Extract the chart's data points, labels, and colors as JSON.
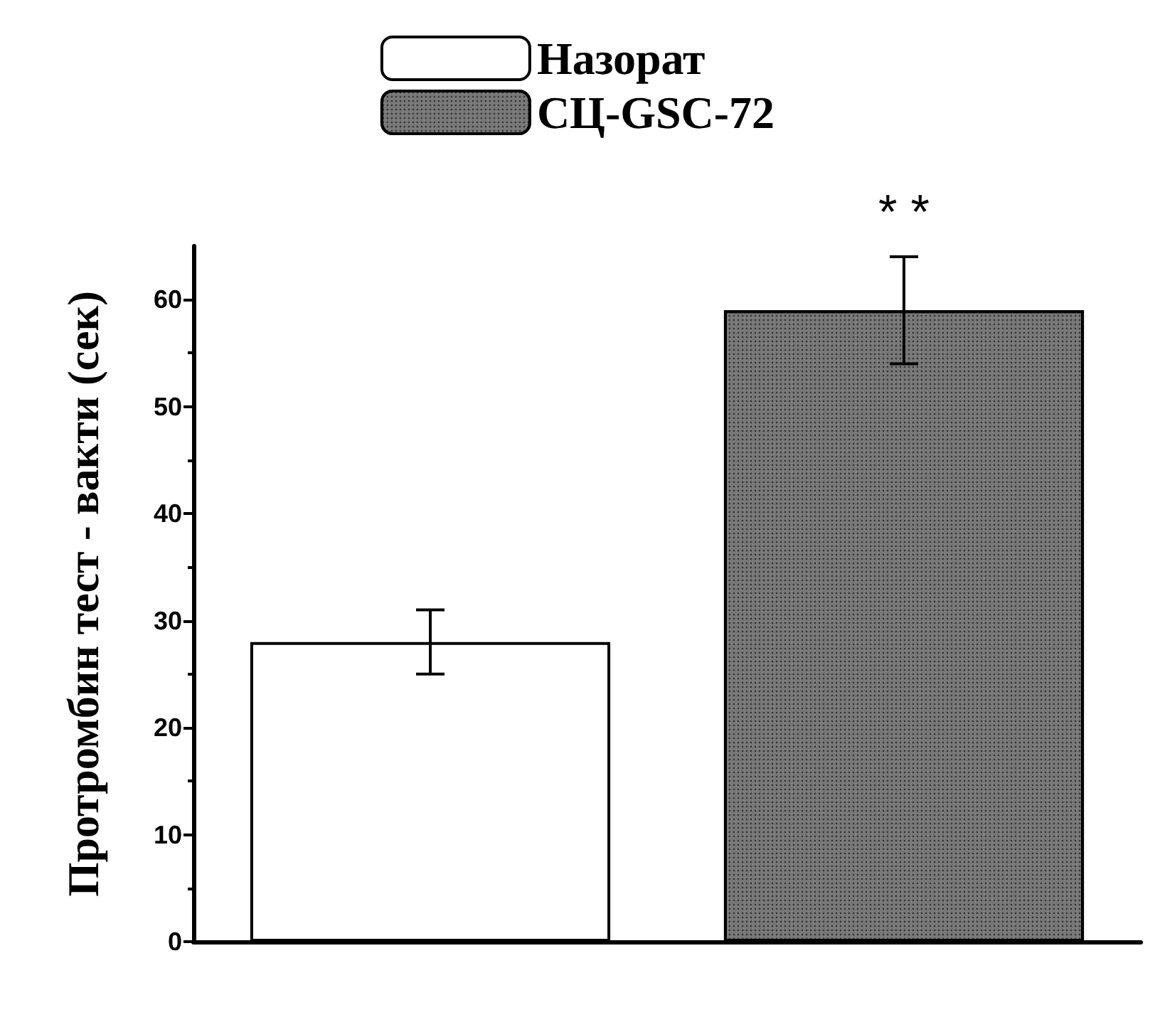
{
  "chart_data": {
    "type": "bar",
    "ylabel": "Протромбин тест - вакти (сек)",
    "categories": [
      null,
      null
    ],
    "series": [
      {
        "name": "Назорат",
        "color": "#ffffff",
        "values": [
          28,
          null
        ],
        "errors": [
          3,
          null
        ]
      },
      {
        "name": "СЦ-GSC-72",
        "color": "#7a7a7a",
        "values": [
          null,
          59
        ],
        "errors": [
          null,
          5
        ]
      }
    ],
    "ylim": [
      0,
      65
    ],
    "yticks": [
      0,
      10,
      20,
      30,
      40,
      50,
      60
    ],
    "annotations": [
      "* *"
    ],
    "legend": "top",
    "grid": false
  }
}
